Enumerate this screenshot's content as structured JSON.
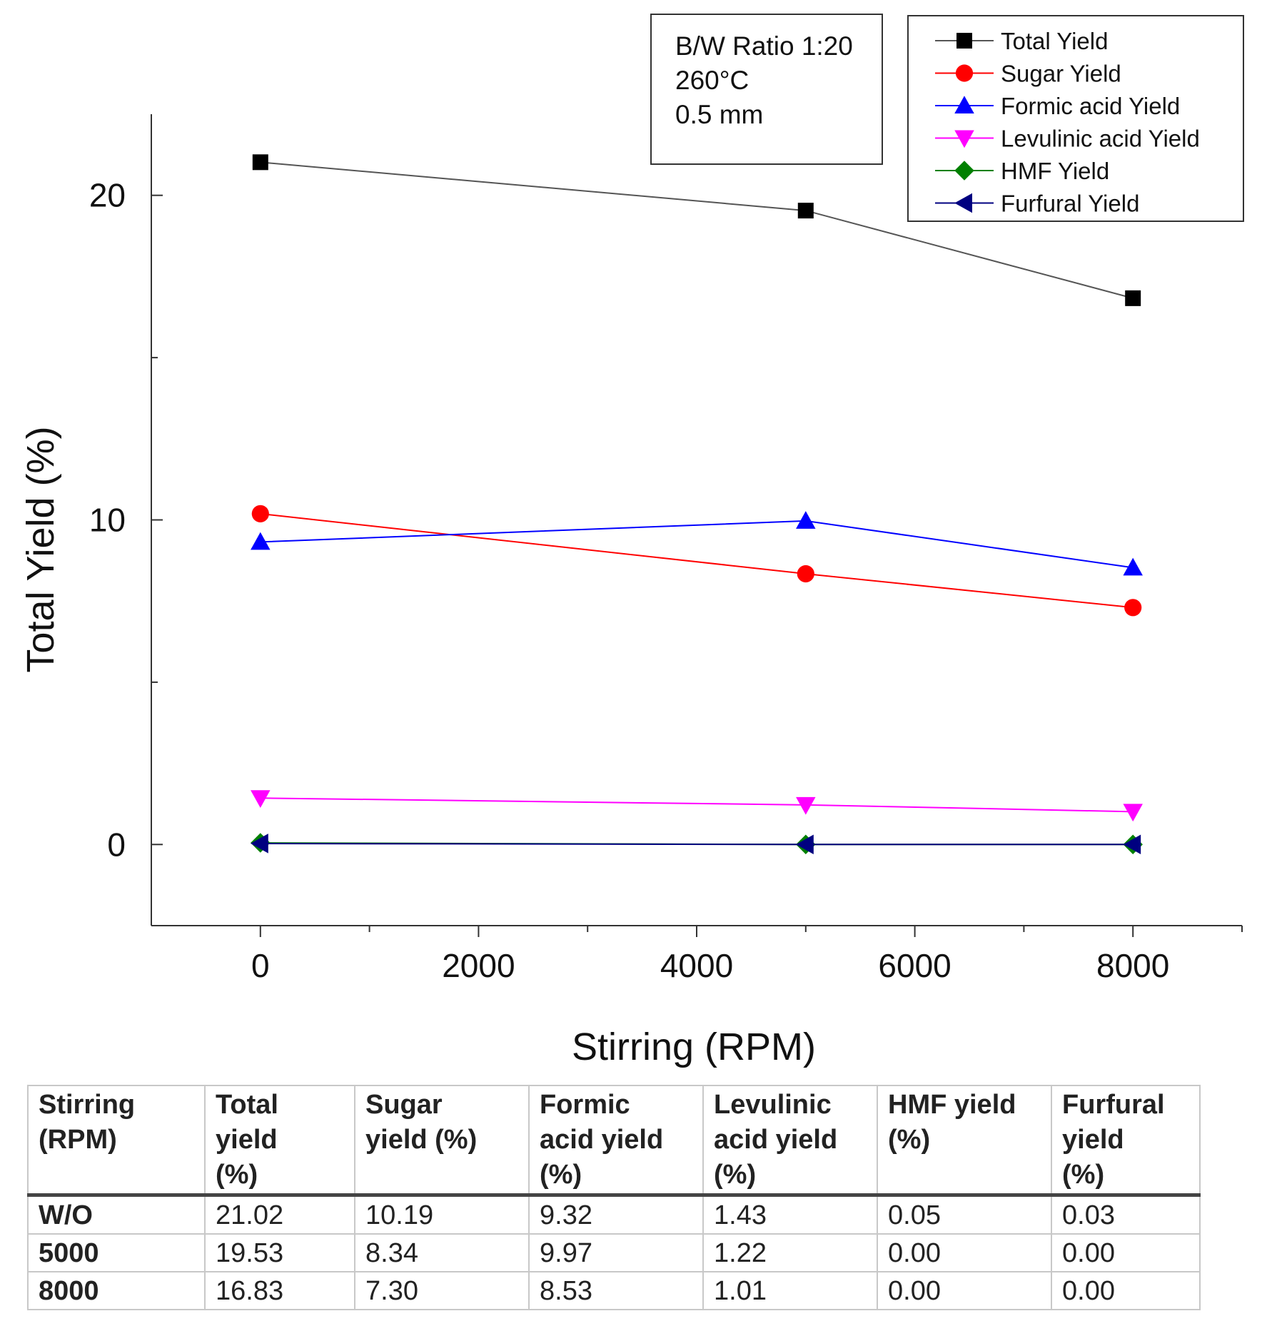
{
  "chart_data": {
    "type": "line",
    "title": "",
    "xlabel": "Stirring (RPM)",
    "ylabel": "Total Yield (%)",
    "xlim": [
      -1000,
      9000
    ],
    "ylim": [
      -2.5,
      22.5
    ],
    "x_ticks": [
      0,
      2000,
      4000,
      6000,
      8000
    ],
    "x_minor_ticks": [
      1000,
      3000,
      5000,
      7000,
      9000
    ],
    "y_ticks": [
      0,
      10,
      20
    ],
    "y_minor_ticks": [
      5,
      15
    ],
    "grid": false,
    "legend_position": "top-right",
    "conditions": [
      "B/W Ratio 1:20",
      "260°C",
      "0.5 mm"
    ],
    "x": [
      0,
      5000,
      8000
    ],
    "series": [
      {
        "name": "Total Yield",
        "marker": "square",
        "color": "#000000",
        "line_color": "#555555",
        "values": [
          21.02,
          19.53,
          16.83
        ]
      },
      {
        "name": "Sugar Yield",
        "marker": "circle",
        "color": "#ff0000",
        "line_color": "#ff0000",
        "values": [
          10.19,
          8.34,
          7.3
        ]
      },
      {
        "name": "Formic acid Yield",
        "marker": "triangle-up",
        "color": "#0000ff",
        "line_color": "#0000ff",
        "values": [
          9.32,
          9.97,
          8.53
        ]
      },
      {
        "name": "Levulinic acid Yield",
        "marker": "triangle-down",
        "color": "#ff00ff",
        "line_color": "#ff00ff",
        "values": [
          1.43,
          1.22,
          1.01
        ]
      },
      {
        "name": "HMF Yield",
        "marker": "diamond",
        "color": "#008000",
        "line_color": "#008000",
        "values": [
          0.05,
          0.0,
          0.0
        ]
      },
      {
        "name": "Furfural Yield",
        "marker": "triangle-left",
        "color": "#000080",
        "line_color": "#000080",
        "values": [
          0.03,
          0.0,
          0.0
        ]
      }
    ]
  },
  "table": {
    "headers": [
      [
        "Stirring",
        "(RPM)"
      ],
      [
        "Total",
        "yield",
        "(%)"
      ],
      [
        "Sugar",
        "yield (%)"
      ],
      [
        "Formic",
        "acid yield",
        "(%)"
      ],
      [
        "Levulinic",
        "acid yield",
        "(%)"
      ],
      [
        "HMF yield",
        "(%)"
      ],
      [
        "Furfural",
        "yield",
        "(%)"
      ]
    ],
    "rows": [
      [
        "W/O",
        "21.02",
        "10.19",
        "9.32",
        "1.43",
        "0.05",
        "0.03"
      ],
      [
        "5000",
        "19.53",
        "8.34",
        "9.97",
        "1.22",
        "0.00",
        "0.00"
      ],
      [
        "8000",
        "16.83",
        "7.30",
        "8.53",
        "1.01",
        "0.00",
        "0.00"
      ]
    ]
  }
}
